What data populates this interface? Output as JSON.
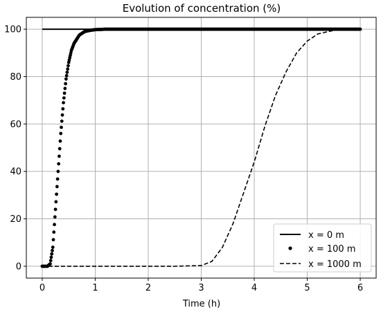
{
  "chart_data": {
    "type": "line",
    "title": "Evolution of concentration (%)",
    "xlabel": "Time (h)",
    "ylabel": "",
    "xlim": [
      -0.3,
      6.3
    ],
    "ylim": [
      -5,
      105
    ],
    "xticks": [
      0,
      1,
      2,
      3,
      4,
      5,
      6
    ],
    "yticks": [
      0,
      20,
      40,
      60,
      80,
      100
    ],
    "grid": true,
    "legend_position": "lower-right",
    "series": [
      {
        "name": "x = 0 m",
        "style": "solid",
        "x": [
          0,
          6
        ],
        "y": [
          100,
          100
        ]
      },
      {
        "name": "x = 100 m",
        "style": "dots",
        "x": [
          0,
          0.1,
          0.15,
          0.2,
          0.25,
          0.3,
          0.35,
          0.4,
          0.45,
          0.5,
          0.55,
          0.6,
          0.7,
          0.8,
          0.9,
          1.0,
          1.2,
          1.5,
          2.0,
          3.0,
          4.0,
          5.0,
          6.0
        ],
        "y": [
          0,
          0,
          1,
          8,
          24,
          40,
          56,
          69,
          79,
          86,
          91,
          94,
          97.5,
          99,
          99.5,
          99.8,
          100,
          100,
          100,
          100,
          100,
          100,
          100
        ]
      },
      {
        "name": "x = 1000 m",
        "style": "dashed",
        "x": [
          0,
          2.5,
          3.0,
          3.2,
          3.4,
          3.6,
          3.8,
          4.0,
          4.2,
          4.4,
          4.6,
          4.8,
          5.0,
          5.2,
          5.5,
          6.0
        ],
        "y": [
          0,
          0,
          0.3,
          2,
          8,
          18,
          31,
          44,
          59,
          72,
          82,
          90,
          95,
          98,
          99.5,
          100
        ]
      }
    ],
    "colors": {
      "line": "#000000",
      "grid": "#b0b0b0",
      "legend_border": "#cccccc"
    }
  }
}
